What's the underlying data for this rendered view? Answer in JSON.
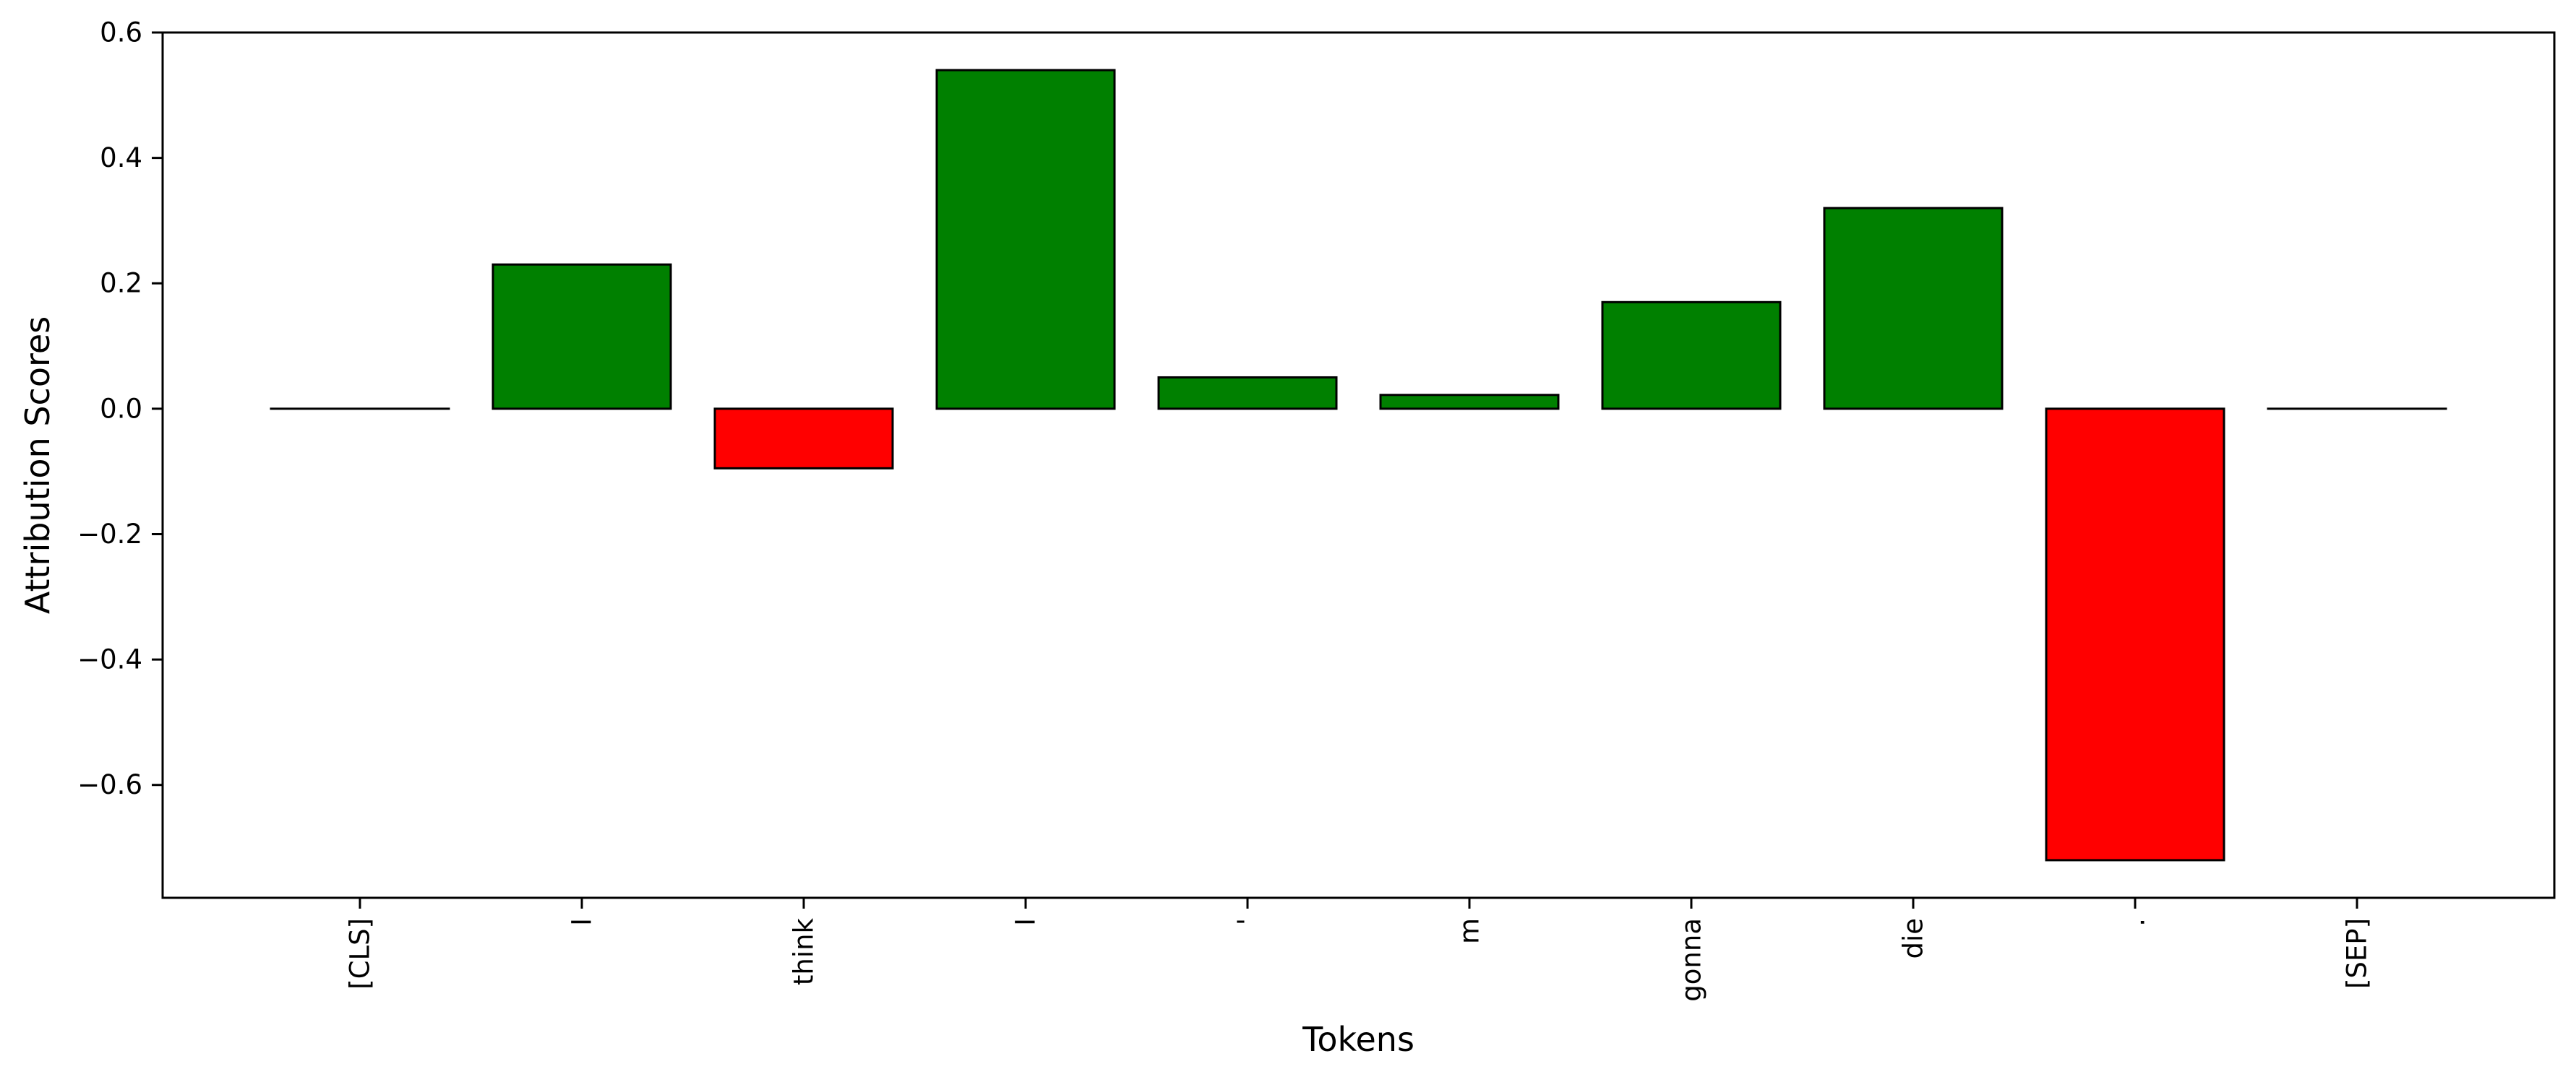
{
  "chart_data": {
    "type": "bar",
    "title": "",
    "xlabel": "Tokens",
    "ylabel": "Attribution Scores",
    "categories": [
      "[CLS]",
      "I",
      "think",
      "I",
      "'",
      "m",
      "gonna",
      "die",
      ".",
      "[SEP]"
    ],
    "values": [
      0.0,
      0.23,
      -0.095,
      0.54,
      0.05,
      0.022,
      0.17,
      0.32,
      -0.72,
      0.0
    ],
    "ylim": [
      -0.78,
      0.6
    ],
    "yticks": [
      0.6,
      0.4,
      0.2,
      0.0,
      -0.2,
      -0.4,
      -0.6
    ],
    "ytick_labels": [
      "0.6",
      "0.4",
      "0.2",
      "0.0",
      "−0.2",
      "−0.4",
      "−0.6"
    ],
    "colors": {
      "positive": "#008000",
      "negative": "#ff0000",
      "edge": "#000000"
    },
    "grid": false,
    "legend": "none"
  }
}
